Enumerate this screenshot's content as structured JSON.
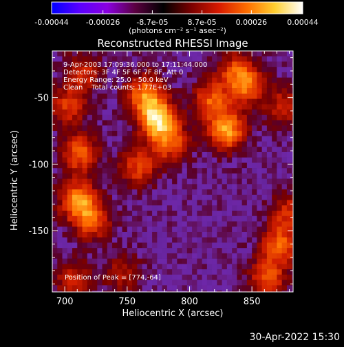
{
  "colorbar": {
    "tick_labels": [
      "-0.00044",
      "-0.00026",
      "-8.7e-05",
      "8.7e-05",
      "0.00026",
      "0.00044"
    ],
    "tick_values": [
      -0.00044,
      -0.00026,
      -8.7e-05,
      8.7e-05,
      0.00026,
      0.00044
    ],
    "range": [
      -0.00044,
      0.00044
    ],
    "units_label": "(photons cm⁻² s⁻¹ asec⁻²)",
    "colors": [
      "#0000ff",
      "#5a00ff",
      "#8a00e0",
      "#5a0040",
      "#000000",
      "#7a0000",
      "#d81a00",
      "#ff6e00",
      "#ffcf30",
      "#ffffff"
    ]
  },
  "chart_data": {
    "type": "heatmap",
    "title": "Reconstructed RHESSI Image",
    "xlabel": "Heliocentric X (arcsec)",
    "ylabel": "Heliocentric Y (arcsec)",
    "xlim": [
      690,
      883
    ],
    "ylim": [
      -196,
      -15
    ],
    "x_ticks": [
      700,
      750,
      800,
      850
    ],
    "y_ticks": [
      -50,
      -100,
      -150
    ],
    "annotations": [
      "9-Apr-2003 17:09:36.000 to 17:11:44.000",
      "Detectors: 3F 4F 5F 6F 7F 8F, Att 0",
      "Energy Range: 25.0 - 50.0 keV",
      "Clean    Total counts: 1.77E+03"
    ],
    "peak_label": "Position of Peak = [774,-64]",
    "peak": [
      774,
      -64
    ],
    "sources": [
      {
        "x": 772,
        "y": -64,
        "s": 1.0
      },
      {
        "x": 762,
        "y": -45,
        "s": 0.7
      },
      {
        "x": 783,
        "y": -82,
        "s": 0.6
      },
      {
        "x": 757,
        "y": -100,
        "s": 0.55
      },
      {
        "x": 710,
        "y": -90,
        "s": 0.65
      },
      {
        "x": 708,
        "y": -125,
        "s": 0.75
      },
      {
        "x": 720,
        "y": -140,
        "s": 0.6
      },
      {
        "x": 700,
        "y": -55,
        "s": 0.5
      },
      {
        "x": 712,
        "y": -30,
        "s": 0.45
      },
      {
        "x": 828,
        "y": -73,
        "s": 0.85
      },
      {
        "x": 815,
        "y": -50,
        "s": 0.6
      },
      {
        "x": 845,
        "y": -40,
        "s": 0.6
      },
      {
        "x": 835,
        "y": -28,
        "s": 0.5
      },
      {
        "x": 875,
        "y": -55,
        "s": 0.45
      },
      {
        "x": 870,
        "y": -160,
        "s": 0.65
      },
      {
        "x": 860,
        "y": -185,
        "s": 0.6
      },
      {
        "x": 878,
        "y": -135,
        "s": 0.5
      },
      {
        "x": 745,
        "y": -180,
        "s": 0.35
      },
      {
        "x": 705,
        "y": -185,
        "s": 0.45
      }
    ]
  },
  "footer": {
    "timestamp": "30-Apr-2022 15:30"
  }
}
